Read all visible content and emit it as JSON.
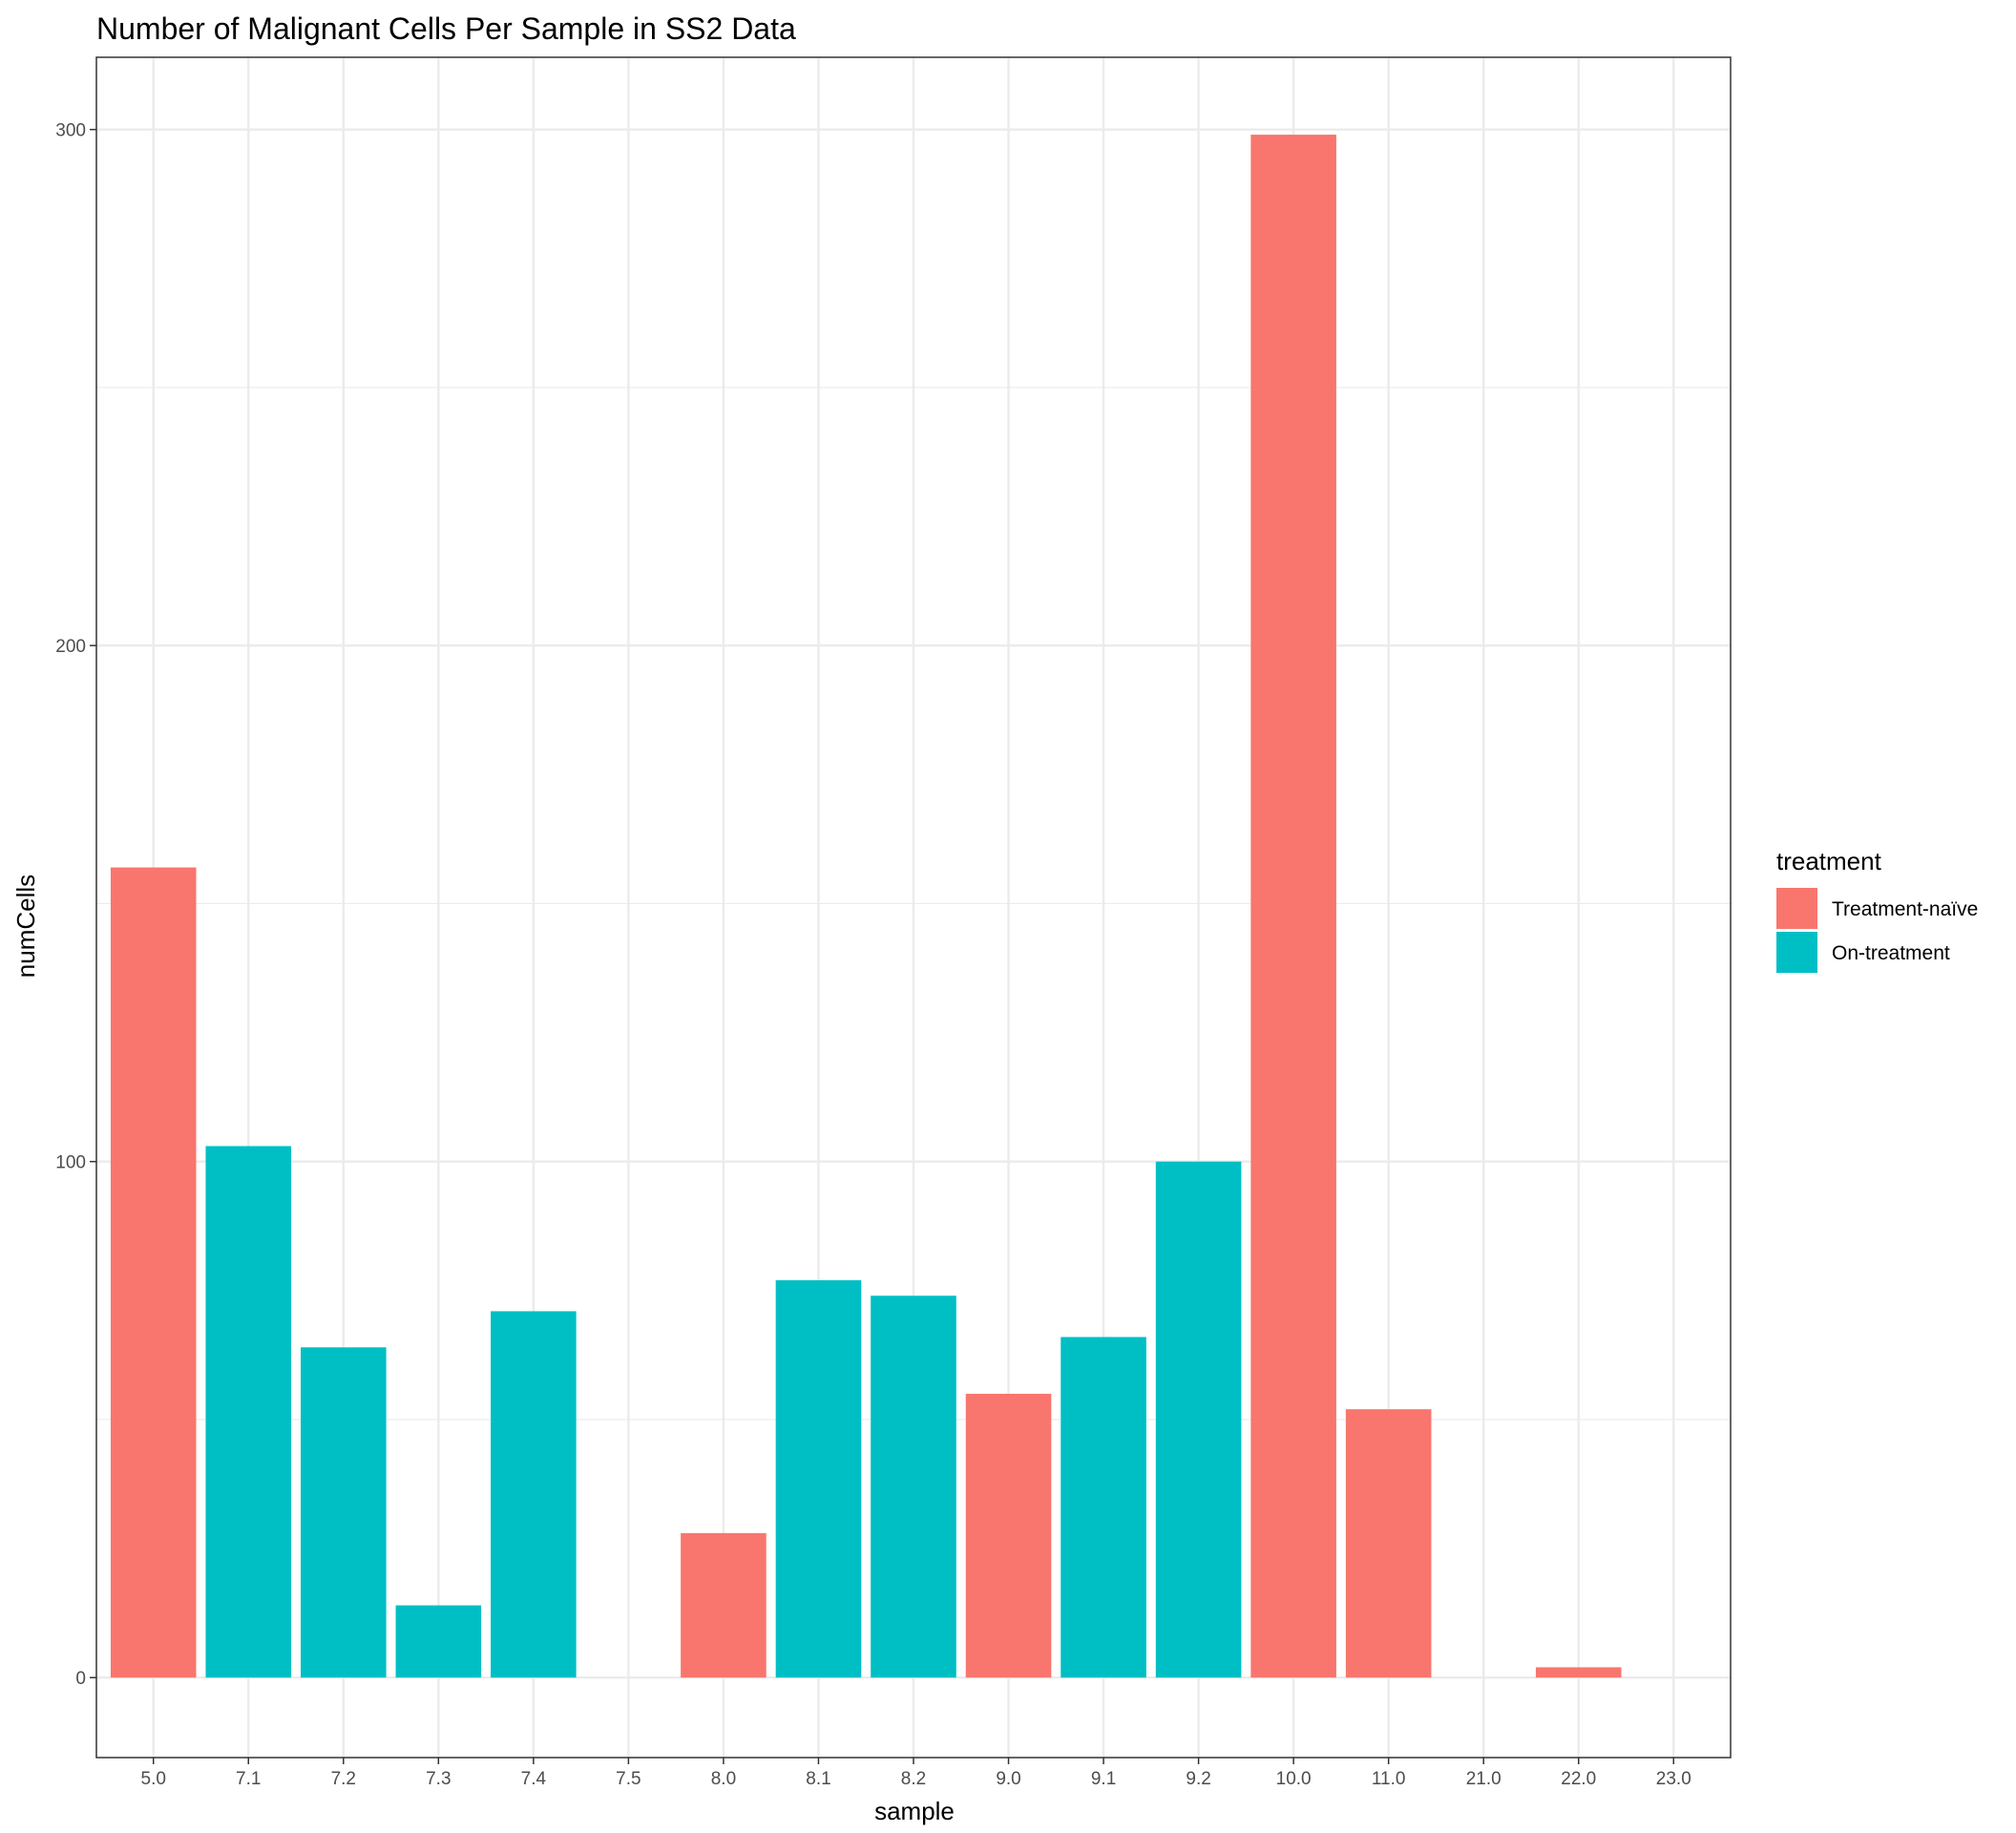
{
  "chart_data": {
    "type": "bar",
    "title": "Number of Malignant Cells Per Sample in SS2 Data",
    "xlabel": "sample",
    "ylabel": "numCells",
    "categories": [
      "5.0",
      "7.1",
      "7.2",
      "7.3",
      "7.4",
      "7.5",
      "8.0",
      "8.1",
      "8.2",
      "9.0",
      "9.1",
      "9.2",
      "10.0",
      "11.0",
      "21.0",
      "22.0",
      "23.0"
    ],
    "values": [
      157,
      103,
      64,
      14,
      71,
      0,
      28,
      77,
      74,
      55,
      66,
      100,
      299,
      52,
      0,
      2,
      0
    ],
    "groups": [
      "Treatment-naïve",
      "On-treatment",
      "On-treatment",
      "On-treatment",
      "On-treatment",
      "On-treatment",
      "Treatment-naïve",
      "On-treatment",
      "On-treatment",
      "Treatment-naïve",
      "On-treatment",
      "On-treatment",
      "Treatment-naïve",
      "Treatment-naïve",
      "Treatment-naïve",
      "Treatment-naïve",
      "Treatment-naïve"
    ],
    "ylim": [
      -15.5,
      314
    ],
    "yticks": [
      0,
      100,
      200,
      300
    ],
    "grid": true,
    "legend": {
      "title": "treatment",
      "position": "right",
      "entries": [
        {
          "label": "Treatment-naïve",
          "color": "#F8766D"
        },
        {
          "label": "On-treatment",
          "color": "#00BFC4"
        }
      ]
    }
  }
}
